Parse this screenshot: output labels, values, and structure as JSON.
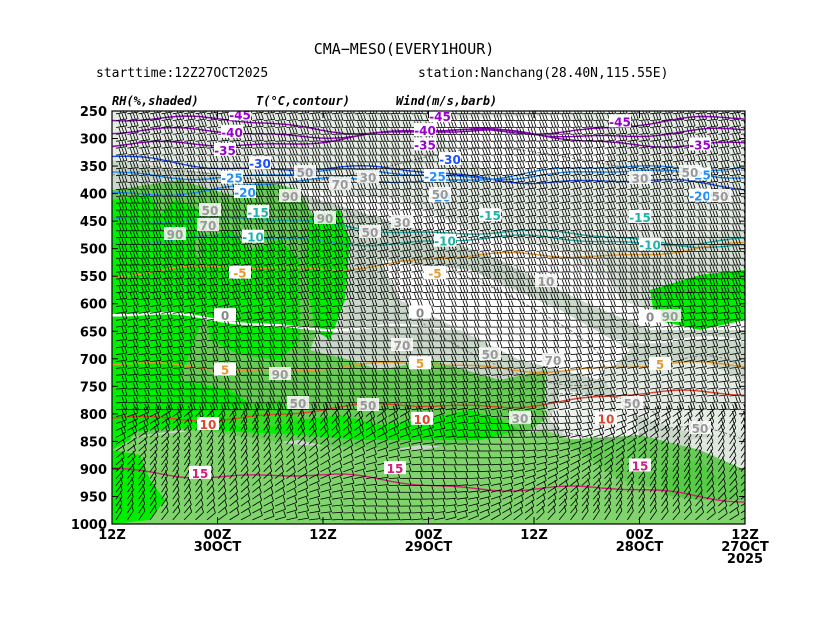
{
  "chart_data": {
    "type": "time-height cross section",
    "title": "CMA−MESO(EVERY1HOUR)",
    "starttime_text": "starttime:12Z27OCT2025",
    "station_text": "station:Nanchang(28.40N,115.55E)",
    "legend_labels": [
      "RH(%,shaded)",
      "T(°C,contour)",
      "Wind(m/s,barb)"
    ],
    "y_ticks": [
      "250",
      "300",
      "350",
      "400",
      "450",
      "500",
      "550",
      "600",
      "650",
      "700",
      "750",
      "800",
      "850",
      "900",
      "950",
      "1000"
    ],
    "y_values": [
      250,
      300,
      350,
      400,
      450,
      500,
      550,
      600,
      650,
      700,
      750,
      800,
      850,
      900,
      950,
      1000
    ],
    "ylim": [
      250,
      1000
    ],
    "x_axis_reversed": true,
    "x_ticks": [
      {
        "lines": [
          "12Z"
        ]
      },
      {
        "lines": [
          "00Z",
          "30OCT"
        ]
      },
      {
        "lines": [
          "12Z"
        ]
      },
      {
        "lines": [
          "00Z",
          "29OCT"
        ]
      },
      {
        "lines": [
          "12Z"
        ]
      },
      {
        "lines": [
          "00Z",
          "28OCT"
        ]
      },
      {
        "lines": [
          "12Z",
          "27OCT",
          "2025"
        ]
      }
    ],
    "colors": {
      "rh_low": "#ffffff",
      "rh_30_50": "#e8efe8",
      "rh_50_70": "#c8d6c8",
      "rh_70_90": "#66cc55",
      "rh_90_100": "#00ee00",
      "temp_cold": "#9900cc",
      "temp_mid": "#1e90ff",
      "temp_teal": "#20b2aa",
      "temp_zero": "#ffffff",
      "temp_5": "#e69a2e",
      "temp_10": "#e0462e",
      "temp_15": "#d0207a"
    },
    "temperature_contours": [
      {
        "value": "-45",
        "level": 262,
        "color": "#9900cc"
      },
      {
        "value": "-40",
        "level": 290,
        "color": "#9900cc"
      },
      {
        "value": "-35",
        "level": 318,
        "color": "#9900cc"
      },
      {
        "value": "-30",
        "level": 338,
        "color": "#1e4fff"
      },
      {
        "value": "-25",
        "level": 365,
        "color": "#1e90ff"
      },
      {
        "value": "-20",
        "level": 398,
        "color": "#1e90ff"
      },
      {
        "value": "-15",
        "level": 440,
        "color": "#20b2aa"
      },
      {
        "value": "-10",
        "level": 485,
        "color": "#20b2aa"
      },
      {
        "value": "-5",
        "level": 548,
        "color": "#e69a2e"
      },
      {
        "value": "0",
        "level": 622,
        "color": "#ffffff"
      },
      {
        "value": "5",
        "level": 715,
        "color": "#e69a2e"
      },
      {
        "value": "10",
        "level": 812,
        "color": "#e0462e"
      },
      {
        "value": "15",
        "level": 900,
        "color": "#d0207a"
      }
    ],
    "rh_labels": [
      "90",
      "70",
      "50",
      "30",
      "10"
    ]
  }
}
